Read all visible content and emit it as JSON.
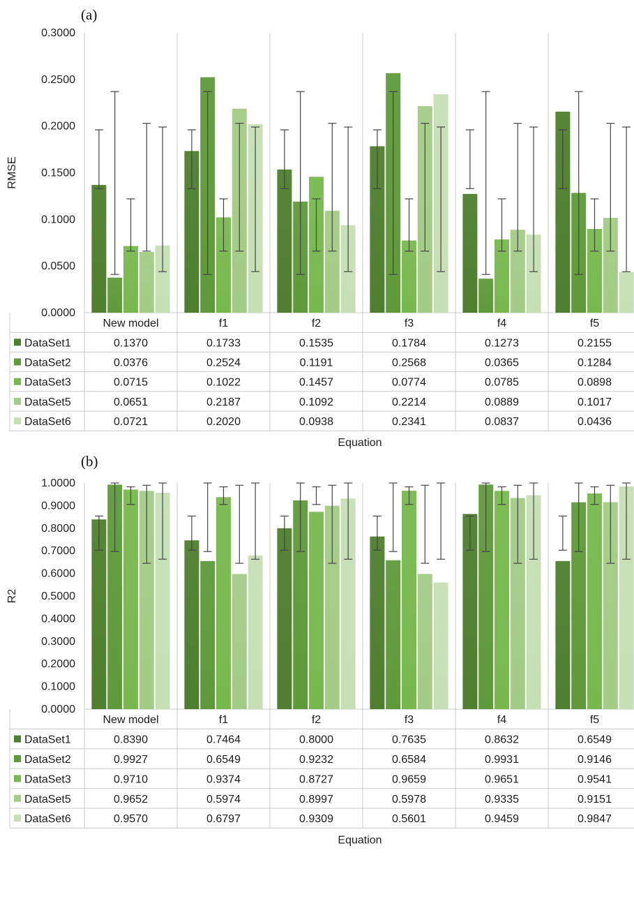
{
  "chart_data": [
    {
      "panel": "(a)",
      "type": "bar",
      "categories": [
        "New model",
        "f1",
        "f2",
        "f3",
        "f4",
        "f5"
      ],
      "ylabel": "RMSE",
      "xlabel": "Equation",
      "ylim": [
        0,
        0.3
      ],
      "ytick_step": 0.05,
      "series": [
        {
          "name": "DataSet1",
          "color": "#4e7f2e",
          "values": [
            0.137,
            0.1733,
            0.1535,
            0.1784,
            0.1273,
            0.2155
          ],
          "display": [
            "0.1370",
            "0.1733",
            "0.1535",
            "0.1784",
            "0.1273",
            "0.2155"
          ],
          "error_bar": [
            0.133,
            0.196
          ]
        },
        {
          "name": "DataSet2",
          "color": "#5f9a3a",
          "values": [
            0.0376,
            0.2524,
            0.1191,
            0.2568,
            0.0365,
            0.1284
          ],
          "display": [
            "0.0376",
            "0.2524",
            "0.1191",
            "0.2568",
            "0.0365",
            "0.1284"
          ],
          "error_bar": [
            0.041,
            0.237
          ]
        },
        {
          "name": "DataSet3",
          "color": "#78b94e",
          "values": [
            0.0715,
            0.1022,
            0.1457,
            0.0774,
            0.0785,
            0.0898
          ],
          "display": [
            "0.0715",
            "0.1022",
            "0.1457",
            "0.0774",
            "0.0785",
            "0.0898"
          ],
          "error_bar": [
            0.066,
            0.122
          ]
        },
        {
          "name": "DataSet5",
          "color": "#a3cc86",
          "values": [
            0.0651,
            0.2187,
            0.1092,
            0.2214,
            0.0889,
            0.1017
          ],
          "display": [
            "0.0651",
            "0.2187",
            "0.1092",
            "0.2214",
            "0.0889",
            "0.1017"
          ],
          "error_bar": [
            0.066,
            0.203
          ]
        },
        {
          "name": "DataSet6",
          "color": "#c6dfb4",
          "values": [
            0.0721,
            0.202,
            0.0938,
            0.2341,
            0.0837,
            0.0436
          ],
          "display": [
            "0.0721",
            "0.2020",
            "0.0938",
            "0.2341",
            "0.0837",
            "0.0436"
          ],
          "error_bar": [
            0.044,
            0.199
          ]
        }
      ]
    },
    {
      "panel": "(b)",
      "type": "bar",
      "categories": [
        "New model",
        "f1",
        "f2",
        "f3",
        "f4",
        "f5"
      ],
      "ylabel": "R2",
      "xlabel": "Equation",
      "ylim": [
        0,
        1
      ],
      "ytick_step": 0.1,
      "series": [
        {
          "name": "DataSet1",
          "color": "#4e7f2e",
          "values": [
            0.839,
            0.7464,
            0.8,
            0.7635,
            0.8632,
            0.6549
          ],
          "display": [
            "0.8390",
            "0.7464",
            "0.8000",
            "0.7635",
            "0.8632",
            "0.6549"
          ],
          "error_bar": [
            0.703,
            0.854
          ]
        },
        {
          "name": "DataSet2",
          "color": "#5f9a3a",
          "values": [
            0.9927,
            0.6549,
            0.9232,
            0.6584,
            0.9931,
            0.9146
          ],
          "display": [
            "0.9927",
            "0.6549",
            "0.9232",
            "0.6584",
            "0.9931",
            "0.9146"
          ],
          "error_bar": [
            0.697,
            1.0
          ]
        },
        {
          "name": "DataSet3",
          "color": "#78b94e",
          "values": [
            0.971,
            0.9374,
            0.8727,
            0.9659,
            0.9651,
            0.9541
          ],
          "display": [
            "0.9710",
            "0.9374",
            "0.8727",
            "0.9659",
            "0.9651",
            "0.9541"
          ],
          "error_bar": [
            0.905,
            0.983
          ]
        },
        {
          "name": "DataSet5",
          "color": "#a3cc86",
          "values": [
            0.9652,
            0.5974,
            0.8997,
            0.5978,
            0.9335,
            0.9151
          ],
          "display": [
            "0.9652",
            "0.5974",
            "0.8997",
            "0.5978",
            "0.9335",
            "0.9151"
          ],
          "error_bar": [
            0.645,
            0.99
          ]
        },
        {
          "name": "DataSet6",
          "color": "#c6dfb4",
          "values": [
            0.957,
            0.6797,
            0.9309,
            0.5601,
            0.9459,
            0.9847
          ],
          "display": [
            "0.9570",
            "0.6797",
            "0.9309",
            "0.5601",
            "0.9459",
            "0.9847"
          ],
          "error_bar": [
            0.663,
            1.0
          ]
        }
      ]
    }
  ]
}
